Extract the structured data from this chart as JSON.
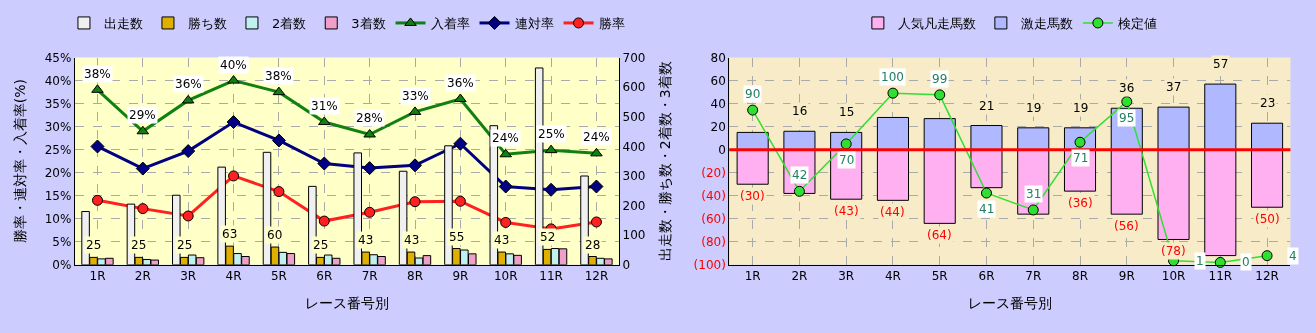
{
  "chart_data": [
    {
      "type": "bar",
      "categories": [
        "1R",
        "2R",
        "3R",
        "4R",
        "5R",
        "6R",
        "7R",
        "8R",
        "9R",
        "10R",
        "11R",
        "12R"
      ],
      "xlabel": "レース番号別",
      "ylabel": "勝率・連対率・入着率(%)",
      "y2label": "出走数・勝ち数・2着数・3着数",
      "ylim": [
        0,
        45
      ],
      "yticks": [
        {
          "value": 0,
          "label": "0%"
        },
        {
          "value": 5,
          "label": "5%"
        },
        {
          "value": 10,
          "label": "10%"
        },
        {
          "value": 15,
          "label": "15%"
        },
        {
          "value": 20,
          "label": "20%"
        },
        {
          "value": 25,
          "label": "25%"
        },
        {
          "value": 30,
          "label": "30%"
        },
        {
          "value": 35,
          "label": "35%"
        },
        {
          "value": 40,
          "label": "40%"
        },
        {
          "value": 45,
          "label": "45%"
        }
      ],
      "y2lim": [
        0,
        700
      ],
      "y2ticks": [
        0,
        100,
        200,
        300,
        400,
        500,
        600,
        700
      ],
      "grid": true,
      "legend": "top",
      "series": [
        {
          "name": "出走数",
          "axis": "y2",
          "color": "#f0f0f0",
          "values": [
            180,
            205,
            235,
            330,
            380,
            265,
            378,
            316,
            402,
            470,
            665,
            300
          ]
        },
        {
          "name": "勝ち数",
          "axis": "y2",
          "color": "#e0b000",
          "values": [
            25,
            25,
            25,
            63,
            60,
            25,
            43,
            43,
            55,
            43,
            52,
            28
          ],
          "value_labels": [
            "25",
            "25",
            "25",
            "63",
            "60",
            "25",
            "43",
            "43",
            "55",
            "43",
            "52",
            "28"
          ]
        },
        {
          "name": "2着数",
          "axis": "y2",
          "color": "#c0f0f0",
          "values": [
            20,
            18,
            33,
            38,
            42,
            33,
            34,
            23,
            50,
            37,
            55,
            22
          ]
        },
        {
          "name": "3着数",
          "axis": "y2",
          "color": "#f0a0c8",
          "values": [
            22,
            16,
            24,
            28,
            38,
            22,
            28,
            31,
            37,
            32,
            54,
            20
          ]
        },
        {
          "name": "入着率",
          "type": "line",
          "marker": "triangle",
          "color": "#108010",
          "values": [
            38,
            29,
            35.7,
            40,
            37.5,
            31,
            28.3,
            33.2,
            36,
            24,
            24.9,
            24.2
          ],
          "value_labels": [
            "38%",
            "29%",
            "36%",
            "40%",
            "38%",
            "31%",
            "28%",
            "33%",
            "36%",
            "24%",
            "25%",
            "24%"
          ]
        },
        {
          "name": "連対率",
          "type": "line",
          "marker": "diamond",
          "color": "#000080",
          "values": [
            25.7,
            20.9,
            24.7,
            31,
            27,
            22,
            21,
            21.6,
            26.3,
            17,
            16.3,
            17
          ]
        },
        {
          "name": "勝率",
          "type": "line",
          "marker": "circle",
          "color": "#ff2020",
          "values": [
            14,
            12.2,
            10.6,
            19.3,
            15.9,
            9.5,
            11.4,
            13.7,
            13.8,
            9.2,
            7.8,
            9.3
          ]
        }
      ]
    },
    {
      "type": "bar",
      "stacked": true,
      "categories": [
        "1R",
        "2R",
        "3R",
        "4R",
        "5R",
        "6R",
        "7R",
        "8R",
        "9R",
        "10R",
        "11R",
        "12R"
      ],
      "xlabel": "レース番号別",
      "ylim": [
        -100,
        80
      ],
      "yticks": [
        {
          "value": -100,
          "label": "(100)"
        },
        {
          "value": -80,
          "label": "(80)"
        },
        {
          "value": -60,
          "label": "(60)"
        },
        {
          "value": -40,
          "label": "(40)"
        },
        {
          "value": -20,
          "label": "(20)"
        },
        0,
        20,
        40,
        60,
        80
      ],
      "y2lim": [
        -1.4,
        121
      ],
      "grid": true,
      "legend": "top",
      "ref_lines": [
        {
          "axis": "y",
          "value": 0,
          "color": "#ff0000"
        }
      ],
      "series": [
        {
          "name": "人気凡走馬数",
          "color": "#ffb0f0",
          "values": [
            -30,
            -38,
            -43,
            -44,
            -64,
            -33,
            -56,
            -36,
            -56,
            -78,
            -92,
            -50
          ],
          "value_labels": [
            "(30)",
            null,
            "(43)",
            "(44)",
            "(64)",
            null,
            null,
            "(36)",
            "(56)",
            "(78)",
            null,
            "(50)"
          ]
        },
        {
          "name": "激走馬数",
          "color": "#b0b8ff",
          "values": [
            15,
            16,
            15,
            28,
            27,
            21,
            19,
            19,
            36,
            37,
            57,
            23
          ],
          "value_labels": [
            null,
            "16",
            "15",
            null,
            null,
            "21",
            "19",
            "19",
            "36",
            "37",
            "57",
            "23"
          ]
        },
        {
          "name": "検定値",
          "type": "line",
          "axis": "y2",
          "marker": "circle",
          "color": "#30e030",
          "values": [
            90,
            42,
            70,
            100,
            99,
            41,
            31,
            71,
            95,
            1,
            0,
            4
          ],
          "value_labels": [
            "90",
            "42",
            "70",
            "100",
            "99",
            "41",
            "31",
            "71",
            "95",
            "1",
            "0",
            "4"
          ]
        }
      ]
    }
  ]
}
